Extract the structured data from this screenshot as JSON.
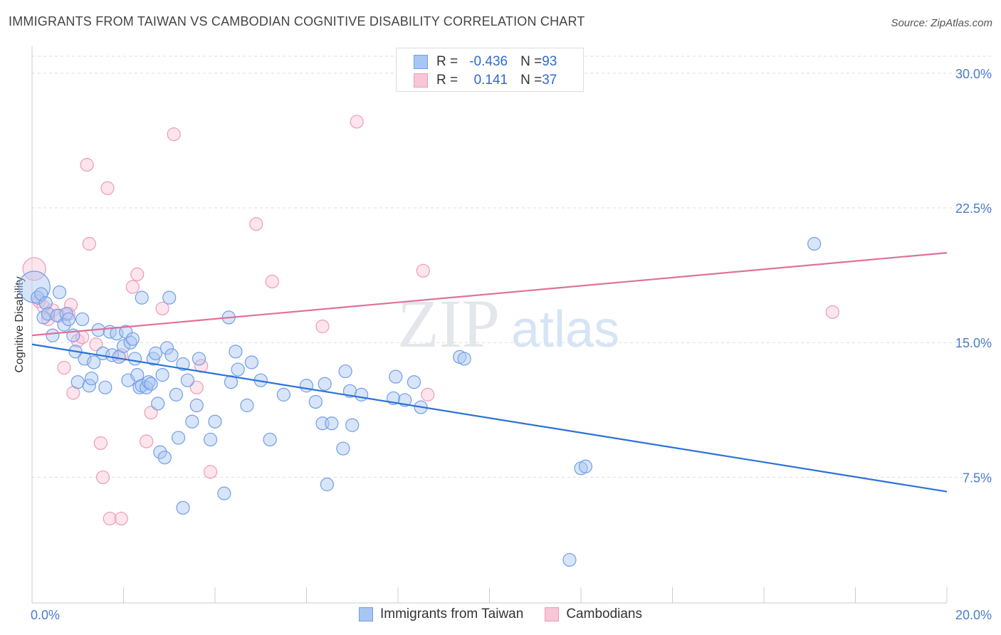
{
  "title": "IMMIGRANTS FROM TAIWAN VS CAMBODIAN COGNITIVE DISABILITY CORRELATION CHART",
  "source": "Source: ZipAtlas.com",
  "watermark": {
    "zip": "ZIP",
    "atlas": "atlas"
  },
  "legend": {
    "rows": [
      {
        "r_label": "R = ",
        "r_value": "-0.436",
        "n_label": "N = ",
        "n_value": "93"
      },
      {
        "r_label": "R = ",
        "r_value": "0.141",
        "n_label": "N = ",
        "n_value": "37"
      }
    ]
  },
  "colors": {
    "taiwan": "#6f9ee8",
    "taiwan_fill": "#a8c6f2",
    "taiwan_line": "#2a72d6",
    "cambodians": "#f09ab5",
    "cambodians_fill": "#f8c6d6",
    "cambodians_line": "#e0709a",
    "grid": "#dddddd",
    "tick_text": "#4a7cc9"
  },
  "chart_data": {
    "type": "scatter",
    "title": "IMMIGRANTS FROM TAIWAN VS CAMBODIAN COGNITIVE DISABILITY CORRELATION CHART",
    "xlabel": "",
    "ylabel": "Cognitive Disability",
    "xlim": [
      0,
      20
    ],
    "ylim": [
      0.5,
      31.5
    ],
    "x_tick_labels": {
      "0": "0.0%",
      "20": "20.0%"
    },
    "y_ticks": [
      7.5,
      15.0,
      22.5,
      30.0
    ],
    "y_tick_labels": [
      "7.5%",
      "15.0%",
      "22.5%",
      "30.0%"
    ],
    "grid": true,
    "legend_position": "bottom",
    "series": [
      {
        "name": "Immigrants from Taiwan",
        "trend": {
          "x": [
            0,
            20
          ],
          "y": [
            14.9,
            6.7
          ]
        },
        "points": [
          [
            0.05,
            18.1,
            3
          ],
          [
            0.12,
            17.5,
            1
          ],
          [
            0.2,
            17.7,
            1
          ],
          [
            0.25,
            16.4,
            1
          ],
          [
            0.3,
            17.2,
            1
          ],
          [
            0.35,
            16.6,
            1
          ],
          [
            0.45,
            15.4,
            1
          ],
          [
            0.55,
            16.5,
            1
          ],
          [
            0.6,
            17.8,
            1
          ],
          [
            0.7,
            16.0,
            1
          ],
          [
            0.75,
            16.6,
            1
          ],
          [
            0.8,
            16.3,
            1
          ],
          [
            0.9,
            15.4,
            1
          ],
          [
            0.95,
            14.5,
            1
          ],
          [
            1.0,
            12.8,
            1
          ],
          [
            1.1,
            16.3,
            1
          ],
          [
            1.15,
            14.1,
            1
          ],
          [
            1.25,
            12.6,
            1
          ],
          [
            1.3,
            13.0,
            1
          ],
          [
            1.35,
            13.9,
            1
          ],
          [
            1.45,
            15.7,
            1
          ],
          [
            1.55,
            14.4,
            1
          ],
          [
            1.6,
            12.5,
            1
          ],
          [
            1.7,
            15.6,
            1
          ],
          [
            1.75,
            14.3,
            1
          ],
          [
            1.85,
            15.5,
            1
          ],
          [
            1.9,
            14.2,
            1
          ],
          [
            2.0,
            14.8,
            1
          ],
          [
            2.05,
            15.6,
            1
          ],
          [
            2.1,
            12.9,
            1
          ],
          [
            2.15,
            15.0,
            1
          ],
          [
            2.2,
            15.2,
            1
          ],
          [
            2.25,
            14.1,
            1
          ],
          [
            2.3,
            13.2,
            1
          ],
          [
            2.35,
            12.5,
            1
          ],
          [
            2.4,
            12.6,
            1
          ],
          [
            2.4,
            17.5,
            1
          ],
          [
            2.5,
            12.5,
            1
          ],
          [
            2.55,
            12.8,
            1
          ],
          [
            2.6,
            12.7,
            1
          ],
          [
            2.65,
            14.1,
            1
          ],
          [
            2.7,
            14.4,
            1
          ],
          [
            2.75,
            11.6,
            1
          ],
          [
            2.8,
            8.9,
            1
          ],
          [
            2.85,
            13.2,
            1
          ],
          [
            2.9,
            8.6,
            1
          ],
          [
            2.95,
            14.7,
            1
          ],
          [
            3.0,
            17.5,
            1
          ],
          [
            3.05,
            14.3,
            1
          ],
          [
            3.15,
            12.1,
            1
          ],
          [
            3.2,
            9.7,
            1
          ],
          [
            3.3,
            13.8,
            1
          ],
          [
            3.3,
            5.8,
            1
          ],
          [
            3.4,
            12.9,
            1
          ],
          [
            3.5,
            10.6,
            1
          ],
          [
            3.6,
            11.5,
            1
          ],
          [
            3.65,
            14.1,
            1
          ],
          [
            3.9,
            9.6,
            1
          ],
          [
            4.0,
            10.6,
            1
          ],
          [
            4.2,
            6.6,
            1
          ],
          [
            4.3,
            16.4,
            1
          ],
          [
            4.35,
            12.8,
            1
          ],
          [
            4.45,
            14.5,
            1
          ],
          [
            4.5,
            13.5,
            1
          ],
          [
            4.7,
            11.5,
            1
          ],
          [
            4.8,
            13.9,
            1
          ],
          [
            5.0,
            12.9,
            1
          ],
          [
            5.2,
            9.6,
            1
          ],
          [
            5.5,
            12.1,
            1
          ],
          [
            6.0,
            12.6,
            1
          ],
          [
            6.2,
            11.7,
            1
          ],
          [
            6.35,
            10.5,
            1
          ],
          [
            6.4,
            12.7,
            1
          ],
          [
            6.45,
            7.1,
            1
          ],
          [
            6.55,
            10.5,
            1
          ],
          [
            6.8,
            9.1,
            1
          ],
          [
            6.85,
            13.4,
            1
          ],
          [
            6.95,
            12.3,
            1
          ],
          [
            7.0,
            10.4,
            1
          ],
          [
            7.2,
            12.1,
            1
          ],
          [
            7.9,
            11.9,
            1
          ],
          [
            7.95,
            13.1,
            1
          ],
          [
            8.15,
            11.8,
            1
          ],
          [
            8.35,
            12.8,
            1
          ],
          [
            8.5,
            11.4,
            1
          ],
          [
            9.35,
            14.2,
            1
          ],
          [
            9.45,
            14.1,
            1
          ],
          [
            11.75,
            2.9,
            1
          ],
          [
            12.0,
            8.0,
            1
          ],
          [
            12.1,
            8.1,
            1
          ],
          [
            17.1,
            20.5,
            1
          ]
        ]
      },
      {
        "name": "Cambodians",
        "trend": {
          "x": [
            0,
            20
          ],
          "y": [
            15.4,
            20.0
          ]
        },
        "points": [
          [
            0.05,
            19.1,
            2
          ],
          [
            0.15,
            17.3,
            1
          ],
          [
            0.25,
            17.0,
            1
          ],
          [
            0.35,
            16.3,
            1
          ],
          [
            0.45,
            16.8,
            1
          ],
          [
            0.6,
            16.5,
            1
          ],
          [
            0.7,
            13.6,
            1
          ],
          [
            0.8,
            16.6,
            1
          ],
          [
            0.85,
            17.1,
            1
          ],
          [
            0.9,
            12.2,
            1
          ],
          [
            1.0,
            15.1,
            1
          ],
          [
            1.1,
            15.3,
            1
          ],
          [
            1.2,
            24.9,
            1
          ],
          [
            1.25,
            20.5,
            1
          ],
          [
            1.4,
            14.9,
            1
          ],
          [
            1.5,
            9.4,
            1
          ],
          [
            1.55,
            7.5,
            1
          ],
          [
            1.65,
            23.6,
            1
          ],
          [
            1.7,
            5.2,
            1
          ],
          [
            1.95,
            5.2,
            1
          ],
          [
            1.95,
            14.3,
            1
          ],
          [
            2.2,
            18.1,
            1
          ],
          [
            2.3,
            18.8,
            1
          ],
          [
            2.5,
            9.5,
            1
          ],
          [
            2.6,
            11.1,
            1
          ],
          [
            2.85,
            16.9,
            1
          ],
          [
            3.1,
            26.6,
            1
          ],
          [
            3.6,
            12.5,
            1
          ],
          [
            3.7,
            13.7,
            1
          ],
          [
            3.9,
            7.8,
            1
          ],
          [
            4.9,
            21.6,
            1
          ],
          [
            5.25,
            18.4,
            1
          ],
          [
            6.35,
            15.9,
            1
          ],
          [
            7.1,
            27.3,
            1
          ],
          [
            8.55,
            19.0,
            1
          ],
          [
            8.65,
            12.1,
            1
          ],
          [
            17.5,
            16.7,
            1
          ]
        ]
      }
    ]
  }
}
